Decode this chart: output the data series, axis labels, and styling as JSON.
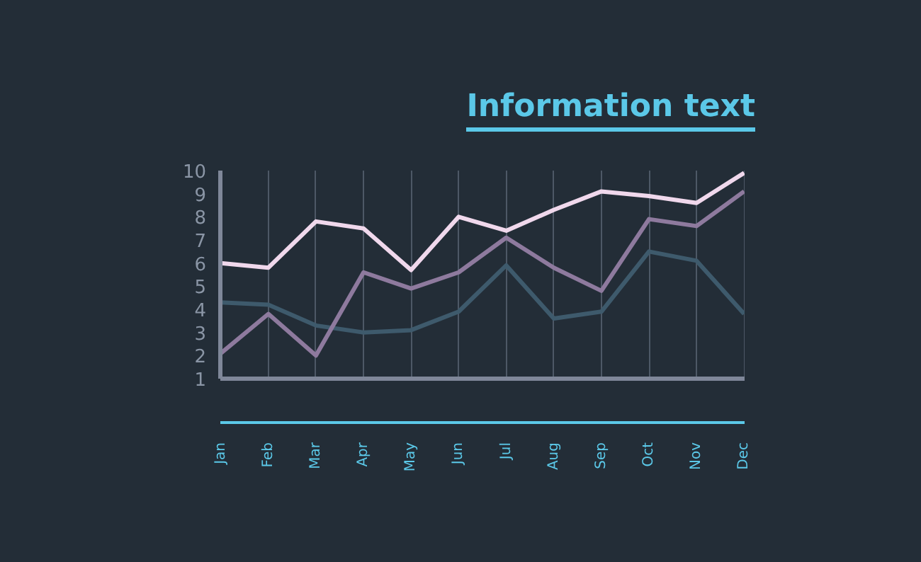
{
  "chart_data": {
    "type": "line",
    "title": "Information text",
    "categories": [
      "Jan",
      "Feb",
      "Mar",
      "Apr",
      "May",
      "Jun",
      "Jul",
      "Aug",
      "Sep",
      "Oct",
      "Nov",
      "Dec"
    ],
    "series": [
      {
        "color": "#3e5a6c",
        "values": [
          4.3,
          4.2,
          3.3,
          3.0,
          3.1,
          3.9,
          5.9,
          3.6,
          3.9,
          6.5,
          6.1,
          3.8
        ]
      },
      {
        "color": "#8e7a9e",
        "values": [
          2.1,
          3.8,
          2.0,
          5.6,
          4.9,
          5.6,
          7.1,
          5.8,
          4.8,
          7.9,
          7.6,
          9.1
        ]
      },
      {
        "color": "#f0d8ec",
        "values": [
          6.0,
          5.8,
          7.8,
          7.5,
          5.7,
          8.0,
          7.4,
          8.3,
          9.1,
          8.9,
          8.6,
          9.9
        ]
      }
    ],
    "ylim": [
      1,
      10
    ],
    "yticks": [
      1,
      2,
      3,
      4,
      5,
      6,
      7,
      8,
      9,
      10
    ],
    "grid": "x",
    "marker": "none",
    "line_style": "solid"
  }
}
